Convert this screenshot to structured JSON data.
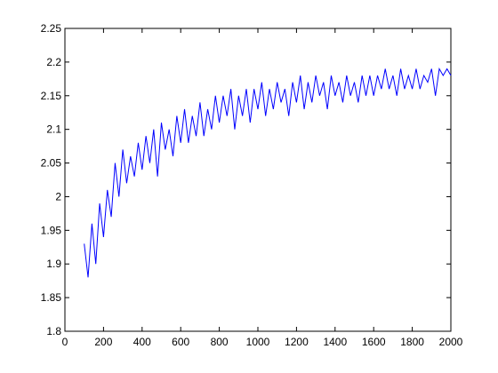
{
  "chart_data": {
    "type": "line",
    "x": [
      100,
      120,
      140,
      160,
      180,
      200,
      220,
      240,
      260,
      280,
      300,
      320,
      340,
      360,
      380,
      400,
      420,
      440,
      460,
      480,
      500,
      520,
      540,
      560,
      580,
      600,
      620,
      640,
      660,
      680,
      700,
      720,
      740,
      760,
      780,
      800,
      820,
      840,
      860,
      880,
      900,
      920,
      940,
      960,
      980,
      1000,
      1020,
      1040,
      1060,
      1080,
      1100,
      1120,
      1140,
      1160,
      1180,
      1200,
      1220,
      1240,
      1260,
      1280,
      1300,
      1320,
      1340,
      1360,
      1380,
      1400,
      1420,
      1440,
      1460,
      1480,
      1500,
      1520,
      1540,
      1560,
      1580,
      1600,
      1620,
      1640,
      1660,
      1680,
      1700,
      1720,
      1740,
      1760,
      1780,
      1800,
      1820,
      1840,
      1860,
      1880,
      1900,
      1920,
      1940,
      1960,
      1980,
      2000
    ],
    "series": [
      {
        "color": "#0000ff",
        "values": [
          1.93,
          1.88,
          1.96,
          1.9,
          1.99,
          1.94,
          2.01,
          1.97,
          2.05,
          2.0,
          2.07,
          2.02,
          2.06,
          2.03,
          2.08,
          2.04,
          2.09,
          2.05,
          2.1,
          2.03,
          2.11,
          2.07,
          2.1,
          2.06,
          2.12,
          2.08,
          2.13,
          2.08,
          2.12,
          2.09,
          2.14,
          2.09,
          2.13,
          2.1,
          2.15,
          2.11,
          2.15,
          2.12,
          2.16,
          2.1,
          2.15,
          2.12,
          2.16,
          2.11,
          2.16,
          2.13,
          2.17,
          2.12,
          2.16,
          2.13,
          2.17,
          2.14,
          2.16,
          2.12,
          2.17,
          2.14,
          2.18,
          2.13,
          2.17,
          2.14,
          2.18,
          2.15,
          2.17,
          2.13,
          2.18,
          2.15,
          2.17,
          2.14,
          2.18,
          2.15,
          2.17,
          2.14,
          2.18,
          2.15,
          2.18,
          2.15,
          2.18,
          2.16,
          2.19,
          2.16,
          2.18,
          2.15,
          2.19,
          2.16,
          2.18,
          2.16,
          2.19,
          2.16,
          2.18,
          2.17,
          2.19,
          2.15,
          2.19,
          2.18,
          2.19,
          2.18
        ]
      }
    ],
    "xlim": [
      0,
      2000
    ],
    "xticks": [
      0,
      200,
      400,
      600,
      800,
      1000,
      1200,
      1400,
      1600,
      1800,
      2000
    ],
    "ylim": [
      1.8,
      2.25
    ],
    "yticks": [
      1.8,
      1.85,
      1.9,
      1.95,
      2,
      2.05,
      2.1,
      2.15,
      2.2,
      2.25
    ],
    "grid": false
  }
}
